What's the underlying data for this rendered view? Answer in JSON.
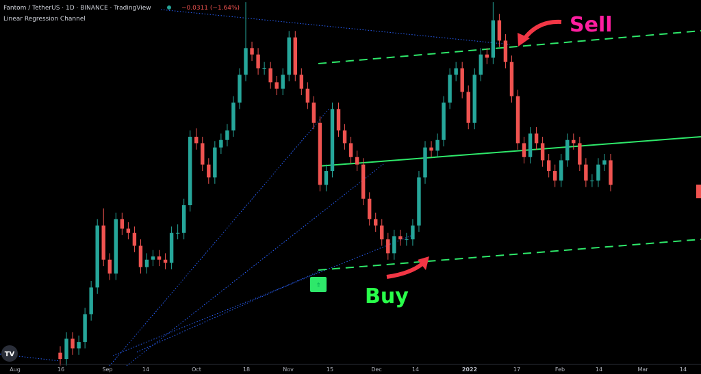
{
  "chart_data": {
    "type": "candlestick",
    "title": "Fantom / TetherUS · 1D · BINANCE · TradingView",
    "change": "−0.0311 (−1.64%)",
    "indicator": "Linear Regression Channel",
    "annotations": [
      "Sell",
      "Buy"
    ],
    "date_labels": [
      "Aug",
      "16",
      "Sep",
      "14",
      "Oct",
      "18",
      "Nov",
      "15",
      "Dec",
      "14",
      "2022",
      "17",
      "Feb",
      "14",
      "Mar",
      "14"
    ],
    "up_color": "#26a69a",
    "down_color": "#ef5350",
    "ylim": [
      0,
      3.5
    ],
    "ohlc": [
      [
        0.2,
        0.26,
        0.08,
        0.14
      ],
      [
        0.14,
        0.39,
        0.08,
        0.33
      ],
      [
        0.33,
        0.39,
        0.18,
        0.24
      ],
      [
        0.24,
        0.36,
        0.18,
        0.3
      ],
      [
        0.3,
        0.62,
        0.24,
        0.56
      ],
      [
        0.56,
        0.87,
        0.5,
        0.81
      ],
      [
        0.81,
        1.45,
        0.75,
        1.39
      ],
      [
        1.39,
        1.55,
        1.01,
        1.07
      ],
      [
        1.07,
        1.13,
        0.88,
        0.94
      ],
      [
        0.94,
        1.51,
        0.88,
        1.45
      ],
      [
        1.45,
        1.51,
        1.3,
        1.36
      ],
      [
        1.36,
        1.42,
        1.26,
        1.32
      ],
      [
        1.32,
        1.38,
        1.14,
        1.2
      ],
      [
        1.2,
        1.26,
        0.94,
        1.0
      ],
      [
        1.0,
        1.13,
        0.94,
        1.07
      ],
      [
        1.07,
        1.16,
        1.01,
        1.1
      ],
      [
        1.1,
        1.16,
        1.01,
        1.07
      ],
      [
        1.07,
        1.13,
        0.98,
        1.04
      ],
      [
        1.04,
        1.38,
        0.98,
        1.32
      ],
      [
        1.32,
        1.4,
        1.26,
        1.32
      ],
      [
        1.32,
        1.64,
        1.26,
        1.58
      ],
      [
        1.58,
        2.28,
        1.52,
        2.22
      ],
      [
        2.22,
        2.3,
        2.1,
        2.16
      ],
      [
        2.16,
        2.22,
        1.9,
        1.96
      ],
      [
        1.96,
        2.02,
        1.78,
        1.84
      ],
      [
        1.84,
        2.18,
        1.78,
        2.12
      ],
      [
        2.12,
        2.25,
        2.06,
        2.19
      ],
      [
        2.19,
        2.34,
        2.13,
        2.28
      ],
      [
        2.28,
        2.6,
        2.22,
        2.54
      ],
      [
        2.54,
        2.86,
        2.48,
        2.8
      ],
      [
        2.8,
        3.48,
        2.74,
        3.05
      ],
      [
        3.05,
        3.11,
        2.93,
        2.99
      ],
      [
        2.99,
        3.05,
        2.8,
        2.86
      ],
      [
        2.86,
        2.92,
        2.8,
        2.86
      ],
      [
        2.86,
        2.92,
        2.67,
        2.73
      ],
      [
        2.73,
        2.79,
        2.61,
        2.67
      ],
      [
        2.67,
        2.86,
        2.61,
        2.8
      ],
      [
        2.8,
        3.21,
        2.74,
        3.15
      ],
      [
        3.15,
        3.21,
        2.74,
        2.8
      ],
      [
        2.8,
        2.86,
        2.61,
        2.67
      ],
      [
        2.67,
        2.73,
        2.48,
        2.54
      ],
      [
        2.54,
        2.6,
        2.29,
        2.35
      ],
      [
        2.35,
        2.41,
        1.71,
        1.77
      ],
      [
        1.77,
        1.96,
        1.71,
        1.9
      ],
      [
        1.9,
        2.54,
        1.84,
        2.48
      ],
      [
        2.48,
        2.54,
        2.22,
        2.28
      ],
      [
        2.28,
        2.34,
        2.1,
        2.16
      ],
      [
        2.16,
        2.22,
        1.97,
        2.03
      ],
      [
        2.03,
        2.09,
        1.9,
        1.96
      ],
      [
        1.96,
        2.02,
        1.58,
        1.64
      ],
      [
        1.64,
        1.7,
        1.39,
        1.45
      ],
      [
        1.45,
        1.51,
        1.33,
        1.39
      ],
      [
        1.39,
        1.45,
        1.2,
        1.26
      ],
      [
        1.26,
        1.32,
        1.07,
        1.13
      ],
      [
        1.13,
        1.35,
        1.07,
        1.29
      ],
      [
        1.29,
        1.35,
        1.2,
        1.26
      ],
      [
        1.26,
        1.32,
        1.2,
        1.26
      ],
      [
        1.26,
        1.45,
        1.2,
        1.39
      ],
      [
        1.39,
        1.9,
        1.33,
        1.84
      ],
      [
        1.84,
        2.18,
        1.78,
        2.12
      ],
      [
        2.12,
        2.18,
        2.03,
        2.09
      ],
      [
        2.09,
        2.25,
        2.03,
        2.19
      ],
      [
        2.19,
        2.6,
        2.13,
        2.54
      ],
      [
        2.54,
        2.86,
        2.48,
        2.8
      ],
      [
        2.8,
        2.92,
        2.74,
        2.86
      ],
      [
        2.86,
        2.92,
        2.58,
        2.64
      ],
      [
        2.64,
        2.7,
        2.29,
        2.35
      ],
      [
        2.35,
        2.86,
        2.29,
        2.8
      ],
      [
        2.8,
        3.05,
        2.74,
        2.99
      ],
      [
        2.99,
        3.05,
        2.9,
        2.96
      ],
      [
        2.96,
        3.48,
        2.9,
        3.31
      ],
      [
        3.31,
        3.37,
        3.06,
        3.12
      ],
      [
        3.12,
        3.18,
        2.86,
        2.92
      ],
      [
        2.92,
        2.98,
        2.54,
        2.6
      ],
      [
        2.6,
        2.66,
        2.1,
        2.16
      ],
      [
        2.16,
        2.22,
        1.97,
        2.03
      ],
      [
        2.03,
        2.31,
        1.97,
        2.25
      ],
      [
        2.25,
        2.31,
        2.1,
        2.16
      ],
      [
        2.16,
        2.22,
        1.94,
        2.0
      ],
      [
        2.0,
        2.06,
        1.84,
        1.9
      ],
      [
        1.9,
        1.96,
        1.75,
        1.81
      ],
      [
        1.81,
        2.06,
        1.75,
        2.0
      ],
      [
        2.0,
        2.25,
        1.94,
        2.19
      ],
      [
        2.19,
        2.25,
        2.1,
        2.16
      ],
      [
        2.16,
        2.22,
        1.9,
        1.96
      ],
      [
        1.96,
        2.02,
        1.75,
        1.81
      ],
      [
        1.81,
        1.87,
        1.75,
        1.81
      ],
      [
        1.81,
        2.02,
        1.75,
        1.96
      ],
      [
        1.96,
        2.06,
        1.9,
        2.0
      ],
      [
        2.0,
        2.06,
        1.71,
        1.77
      ]
    ]
  }
}
